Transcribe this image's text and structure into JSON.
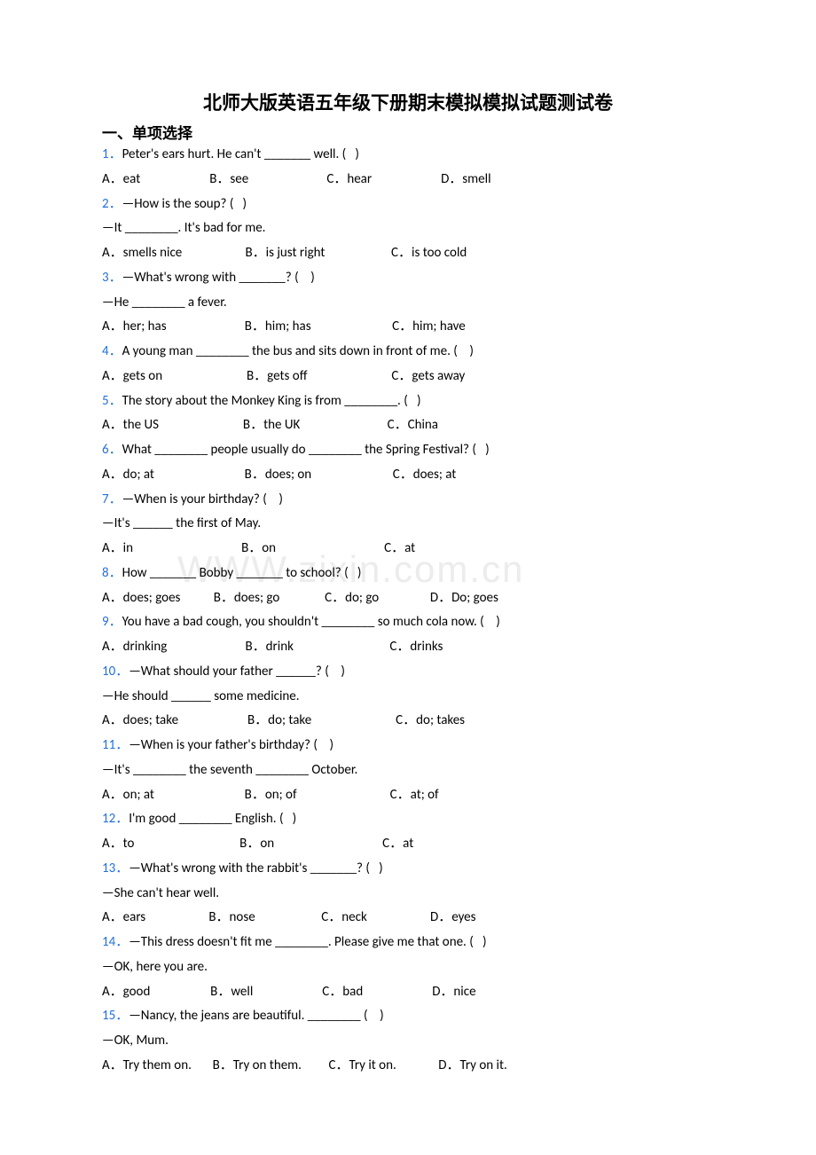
{
  "title": "北师大版英语五年级下册期末模拟模拟试题测试卷",
  "section_header": "一、单项选择",
  "colors": {
    "qnum": "#2270de",
    "text": "#000000",
    "watermark": "#ececec",
    "background": "#ffffff"
  },
  "fonts": {
    "title_size": 21,
    "body_size": 15,
    "section_size": 17
  },
  "watermark": "WWW.zixin.com.cn",
  "questions": [
    {
      "num": "1．",
      "stem": "Peter's ears hurt. He can't _______ well. (   )",
      "lines": [],
      "choices": "A．eat                       B．see                          C．hear                       D．smell"
    },
    {
      "num": "2．",
      "stem": "—How is the soup? (   )",
      "lines": [
        "—It ________. It's bad for me."
      ],
      "choices": "A．smells nice                     B．is just right                      C．is too cold"
    },
    {
      "num": "3．",
      "stem": "—What's wrong with _______? (    )",
      "lines": [
        "—He ________ a fever."
      ],
      "choices": "A．her; has                          B．him; has                           C．him; have"
    },
    {
      "num": "4．",
      "stem": "A young man ________ the bus and sits down in front of me. (    )",
      "lines": [],
      "choices": "A．gets on                            B．gets off                            C．gets away"
    },
    {
      "num": "5．",
      "stem": "The story about the Monkey King is from ________. (   )",
      "lines": [],
      "choices": "A．the US                            B．the UK                             C．China"
    },
    {
      "num": "6．",
      "stem": "What ________ people usually do ________ the Spring Festival? (   )",
      "lines": [],
      "choices": "A．do; at                              B．does; on                           C．does; at"
    },
    {
      "num": "7．",
      "stem": "—When is your birthday? (    )",
      "lines": [
        "—It's ______ the first of May."
      ],
      "choices": "A．in                                    B．on                                    C．at"
    },
    {
      "num": "8．",
      "stem": "How _______ Bobby _______ to school? (   )",
      "lines": [],
      "choices": "A．does; goes           B．does; go               C．do; go                 D．Do; goes"
    },
    {
      "num": "9．",
      "stem": "You have a bad cough, you shouldn't ________ so much cola now. (    )",
      "lines": [],
      "choices": "A．drinking                          B．drink                                C．drinks"
    },
    {
      "num": "10．",
      "stem": "—What should your father ______? (    )",
      "lines": [
        "—He should ______ some medicine."
      ],
      "choices": "A．does; take                       B．do; take                            C．do; takes"
    },
    {
      "num": "11．",
      "stem": "—When is your father's birthday? (    )",
      "lines": [
        "—It's ________ the seventh ________ October."
      ],
      "choices": "A．on; at                              B．on; of                               C．at; of"
    },
    {
      "num": "12．",
      "stem": "I'm good ________ English. (   )",
      "lines": [],
      "choices": "A．to                                   B．on                                    C．at"
    },
    {
      "num": "13．",
      "stem": "—What's wrong with the rabbit's _______? (   )",
      "lines": [
        "—She can't hear well."
      ],
      "choices": "A．ears                     B．nose                      C．neck                     D．eyes"
    },
    {
      "num": "14．",
      "stem": "—This dress doesn't fit me ________. Please give me that one. (   )",
      "lines": [
        "—OK, here you are."
      ],
      "choices": "A．good                    B．well                       C．bad                       D．nice"
    },
    {
      "num": "15．",
      "stem": "—Nancy, the jeans are beautiful. ________ (    )",
      "lines": [
        "—OK, Mum."
      ],
      "choices": "A．Try them on.       B．Try on them.         C．Try it on.              D．Try on it."
    }
  ]
}
